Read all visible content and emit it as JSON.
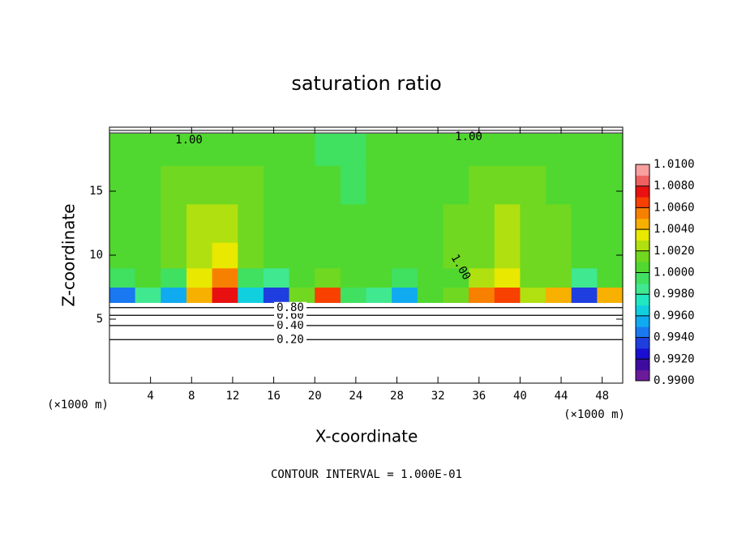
{
  "chart_data": {
    "type": "contour",
    "title": "saturation ratio",
    "x_label": "X-coordinate",
    "y_label": "Z-coordinate",
    "x_unit": "(×1000 m)",
    "y_unit": "(×1000 m)",
    "footnote": "CONTOUR INTERVAL = 1.000E-01",
    "xlim": [
      0,
      50
    ],
    "ylim": [
      0,
      20
    ],
    "xticks": [
      4,
      8,
      12,
      16,
      20,
      24,
      28,
      32,
      36,
      40,
      44,
      48
    ],
    "yticks": [
      5,
      10,
      15
    ],
    "x_edges": [
      0,
      2.5,
      5,
      7.5,
      10,
      12.5,
      15,
      17.5,
      20,
      22.5,
      25,
      27.5,
      30,
      32.5,
      35,
      37.5,
      40,
      42.5,
      45,
      47.5,
      50
    ],
    "y_edges": [
      6.3,
      7.5,
      9,
      11,
      14,
      17,
      19.5
    ],
    "z": [
      [
        0.994,
        0.998,
        0.995,
        1.004,
        1.007,
        0.996,
        0.993,
        1.001,
        1.006,
        0.999,
        0.998,
        0.995,
        1.0,
        1.001,
        1.005,
        1.006,
        1.002,
        1.004,
        0.993,
        1.004
      ],
      [
        0.999,
        1.0,
        0.999,
        1.003,
        1.005,
        0.999,
        0.998,
        1.0,
        1.001,
        1.0,
        1.0,
        0.999,
        1.0,
        1.0,
        1.002,
        1.003,
        1.001,
        1.001,
        0.998,
        1.0
      ],
      [
        1.0,
        1.0,
        1.001,
        1.002,
        1.003,
        1.001,
        1.0,
        1.0,
        1.0,
        1.0,
        1.0,
        1.0,
        1.0,
        1.001,
        1.001,
        1.002,
        1.001,
        1.001,
        1.0,
        1.0
      ],
      [
        1.0,
        1.0,
        1.001,
        1.002,
        1.002,
        1.001,
        1.0,
        1.0,
        1.0,
        1.0,
        1.0,
        1.0,
        1.0,
        1.001,
        1.001,
        1.002,
        1.001,
        1.001,
        1.0,
        1.0
      ],
      [
        1.0,
        1.0,
        1.001,
        1.001,
        1.001,
        1.001,
        1.0,
        1.0,
        1.0,
        0.999,
        1.0,
        1.0,
        1.0,
        1.0,
        1.001,
        1.001,
        1.001,
        1.0,
        1.0,
        1.0
      ],
      [
        1.0,
        1.0,
        1.0,
        1.0,
        1.0,
        1.0,
        1.0,
        1.0,
        0.999,
        0.999,
        1.0,
        1.0,
        1.0,
        1.0,
        1.0,
        1.0,
        1.0,
        1.0,
        1.0,
        1.0
      ]
    ],
    "colorbar": {
      "lim": [
        0.99,
        1.01
      ],
      "ticks": [
        {
          "value": 0.99,
          "label": "0.9900"
        },
        {
          "value": 0.992,
          "label": "0.9920"
        },
        {
          "value": 0.994,
          "label": "0.9940"
        },
        {
          "value": 0.996,
          "label": "0.9960"
        },
        {
          "value": 0.998,
          "label": "0.9980"
        },
        {
          "value": 1.0,
          "label": "1.0000"
        },
        {
          "value": 1.002,
          "label": "1.0020"
        },
        {
          "value": 1.004,
          "label": "1.0040"
        },
        {
          "value": 1.006,
          "label": "1.0060"
        },
        {
          "value": 1.008,
          "label": "1.0080"
        },
        {
          "value": 1.01,
          "label": "1.0100"
        }
      ],
      "colors": [
        "#6a1b9a",
        "#3f0ca0",
        "#1a0fd0",
        "#1f3ee0",
        "#1a78f0",
        "#10aaf0",
        "#10d0e0",
        "#20e8c0",
        "#40e890",
        "#40e060",
        "#50d830",
        "#70d820",
        "#b0e010",
        "#e8e800",
        "#f8b000",
        "#f88000",
        "#f84000",
        "#e81010",
        "#f06060",
        "#f8a0a0"
      ]
    },
    "contour_lines": {
      "levels": [
        0.2,
        0.4,
        0.6,
        0.8
      ],
      "level_labels": [
        "0.20",
        "0.40",
        "0.60",
        "0.80"
      ],
      "heights": [
        3.4,
        4.5,
        5.3,
        5.9
      ]
    },
    "contour_labels": [
      "1.00",
      "1.00",
      "1.00"
    ]
  }
}
